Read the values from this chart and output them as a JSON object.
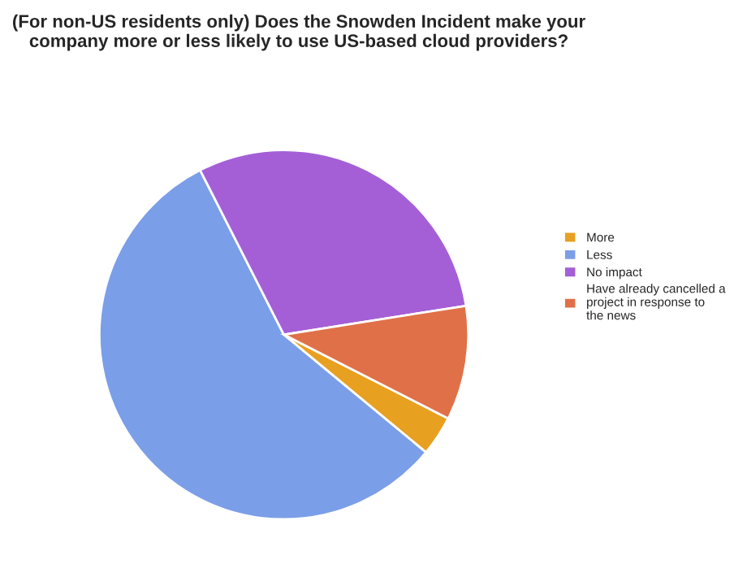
{
  "chart_data": {
    "type": "pie",
    "title": "(For non-US residents only) Does the Snowden Incident make your company more or less likely to use US-based cloud providers?",
    "categories": [
      "More",
      "Less",
      "No impact",
      "Have already cancelled a project in response to the news"
    ],
    "values": [
      3.5,
      56.5,
      30,
      10
    ],
    "colors": [
      "#e8a020",
      "#7b9ee8",
      "#a45fd6",
      "#e07048"
    ],
    "legend": "right"
  }
}
